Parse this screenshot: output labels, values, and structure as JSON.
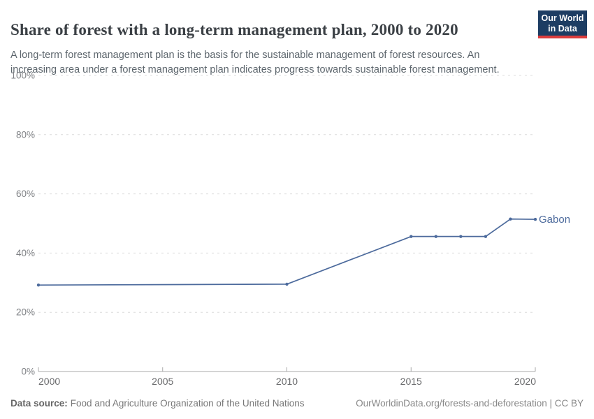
{
  "header": {
    "title": "Share of forest with a long-term management plan, 2000 to 2020",
    "subtitle_lines": [
      "A long-term forest management plan is the basis for the sustainable management of forest resources. An",
      "increasing area under a forest management plan indicates progress towards sustainable forest management."
    ],
    "logo": {
      "line1": "Our World",
      "line2": "in Data",
      "bg_color": "#1d3d63",
      "accent_color": "#dc3d3d"
    }
  },
  "footer": {
    "source_label": "Data source:",
    "source_text": "Food and Agriculture Organization of the United Nations",
    "link_text": "OurWorldinData.org/forests-and-deforestation | CC BY"
  },
  "chart_data": {
    "type": "line",
    "title": "Share of forest with a long-term management plan, 2000 to 2020",
    "xlim": [
      2000,
      2020
    ],
    "ylim": [
      0,
      100
    ],
    "xticks": [
      2000,
      2005,
      2010,
      2015,
      2020
    ],
    "yticks": [
      0,
      20,
      40,
      60,
      80,
      100
    ],
    "ytick_suffix": "%",
    "grid": "horizontal-dashed",
    "legend_position": "end-of-line-label",
    "series": [
      {
        "name": "Gabon",
        "color": "#4C6A9C",
        "x": [
          2000,
          2010,
          2015,
          2016,
          2017,
          2018,
          2019,
          2020
        ],
        "values": [
          29.2,
          29.5,
          45.6,
          45.6,
          45.6,
          45.6,
          51.5,
          51.4
        ]
      }
    ],
    "colors": {
      "gridline": "#dcdcdc",
      "axis": "#a9a9a9",
      "y_tick_label": "#7e8084",
      "x_tick_label": "#68696b"
    }
  }
}
